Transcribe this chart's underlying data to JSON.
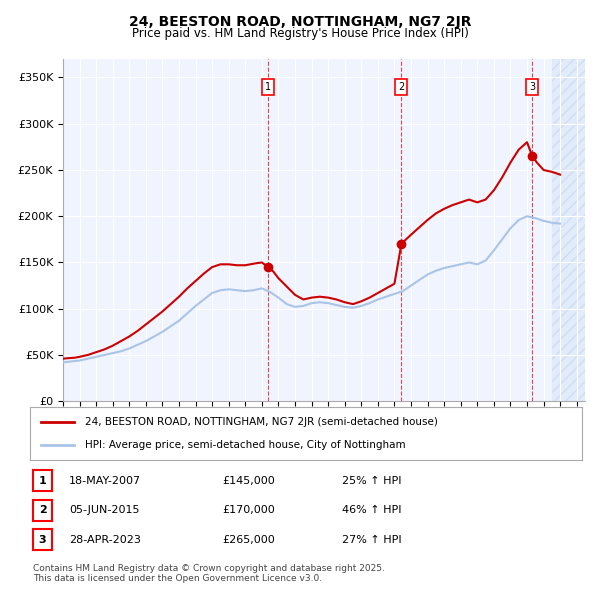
{
  "title1": "24, BEESTON ROAD, NOTTINGHAM, NG7 2JR",
  "title2": "Price paid vs. HM Land Registry's House Price Index (HPI)",
  "hpi_label": "HPI: Average price, semi-detached house, City of Nottingham",
  "property_label": "24, BEESTON ROAD, NOTTINGHAM, NG7 2JR (semi-detached house)",
  "ylabel_ticks": [
    "£0",
    "£50K",
    "£100K",
    "£150K",
    "£200K",
    "£250K",
    "£300K",
    "£350K"
  ],
  "ytick_vals": [
    0,
    50000,
    100000,
    150000,
    200000,
    250000,
    300000,
    350000
  ],
  "ylim": [
    0,
    370000
  ],
  "xlim_start": 1995.0,
  "xlim_end": 2026.5,
  "background_color": "#f0f4ff",
  "hatch_color": "#c8d8f0",
  "grid_color": "#ffffff",
  "hpi_color": "#aac4e8",
  "property_color": "#cc0000",
  "sale_marker_color": "#cc0000",
  "dashed_line_color": "#cc0000",
  "footer_text": "Contains HM Land Registry data © Crown copyright and database right 2025.\nThis data is licensed under the Open Government Licence v3.0.",
  "sale_events": [
    {
      "num": 1,
      "date": "18-MAY-2007",
      "price": 145000,
      "year": 2007.38,
      "pct": "25% ↑ HPI"
    },
    {
      "num": 2,
      "date": "05-JUN-2015",
      "price": 170000,
      "year": 2015.42,
      "pct": "46% ↑ HPI"
    },
    {
      "num": 3,
      "date": "28-APR-2023",
      "price": 265000,
      "year": 2023.32,
      "pct": "27% ↑ HPI"
    }
  ],
  "hpi_data": {
    "years": [
      1995,
      1995.5,
      1996,
      1996.5,
      1997,
      1997.5,
      1998,
      1998.5,
      1999,
      1999.5,
      2000,
      2000.5,
      2001,
      2001.5,
      2002,
      2002.5,
      2003,
      2003.5,
      2004,
      2004.5,
      2005,
      2005.5,
      2006,
      2006.5,
      2007,
      2007.5,
      2008,
      2008.5,
      2009,
      2009.5,
      2010,
      2010.5,
      2011,
      2011.5,
      2012,
      2012.5,
      2013,
      2013.5,
      2014,
      2014.5,
      2015,
      2015.5,
      2016,
      2016.5,
      2017,
      2017.5,
      2018,
      2018.5,
      2019,
      2019.5,
      2020,
      2020.5,
      2021,
      2021.5,
      2022,
      2022.5,
      2023,
      2023.5,
      2024,
      2024.5,
      2025
    ],
    "values": [
      42000,
      43000,
      44000,
      46000,
      48000,
      50000,
      52000,
      54000,
      57000,
      61000,
      65000,
      70000,
      75000,
      81000,
      87000,
      95000,
      103000,
      110000,
      117000,
      120000,
      121000,
      120000,
      119000,
      120000,
      122000,
      118000,
      112000,
      105000,
      102000,
      103000,
      106000,
      107000,
      106000,
      104000,
      102000,
      101000,
      103000,
      106000,
      110000,
      113000,
      116000,
      119000,
      125000,
      131000,
      137000,
      141000,
      144000,
      146000,
      148000,
      150000,
      148000,
      152000,
      163000,
      175000,
      187000,
      196000,
      200000,
      198000,
      195000,
      193000,
      192000
    ]
  },
  "property_data": {
    "years": [
      1995,
      1995.3,
      1995.7,
      1996,
      1996.5,
      1997,
      1997.5,
      1998,
      1998.5,
      1999,
      1999.5,
      2000,
      2000.5,
      2001,
      2001.5,
      2002,
      2002.5,
      2003,
      2003.5,
      2004,
      2004.5,
      2005,
      2005.5,
      2006,
      2006.3,
      2006.6,
      2007,
      2007.38,
      2007.7,
      2008,
      2008.5,
      2009,
      2009.5,
      2010,
      2010.5,
      2011,
      2011.5,
      2012,
      2012.5,
      2013,
      2013.5,
      2014,
      2014.5,
      2015,
      2015.42,
      2015.7,
      2016,
      2016.5,
      2017,
      2017.5,
      2018,
      2018.5,
      2019,
      2019.5,
      2020,
      2020.5,
      2021,
      2021.5,
      2022,
      2022.5,
      2023,
      2023.32,
      2023.6,
      2024,
      2024.5,
      2025
    ],
    "values": [
      46000,
      46500,
      47000,
      48000,
      50000,
      53000,
      56000,
      60000,
      65000,
      70000,
      76000,
      83000,
      90000,
      97000,
      105000,
      113000,
      122000,
      130000,
      138000,
      145000,
      148000,
      148000,
      147000,
      147000,
      148000,
      149000,
      150000,
      145000,
      140000,
      133000,
      124000,
      115000,
      110000,
      112000,
      113000,
      112000,
      110000,
      107000,
      105000,
      108000,
      112000,
      117000,
      122000,
      127000,
      170000,
      175000,
      180000,
      188000,
      196000,
      203000,
      208000,
      212000,
      215000,
      218000,
      215000,
      218000,
      228000,
      242000,
      258000,
      272000,
      280000,
      265000,
      258000,
      250000,
      248000,
      245000
    ]
  },
  "xtick_years": [
    1995,
    1996,
    1997,
    1998,
    1999,
    2000,
    2001,
    2002,
    2003,
    2004,
    2005,
    2006,
    2007,
    2008,
    2009,
    2010,
    2011,
    2012,
    2013,
    2014,
    2015,
    2016,
    2017,
    2018,
    2019,
    2020,
    2021,
    2022,
    2023,
    2024,
    2025,
    2026
  ]
}
